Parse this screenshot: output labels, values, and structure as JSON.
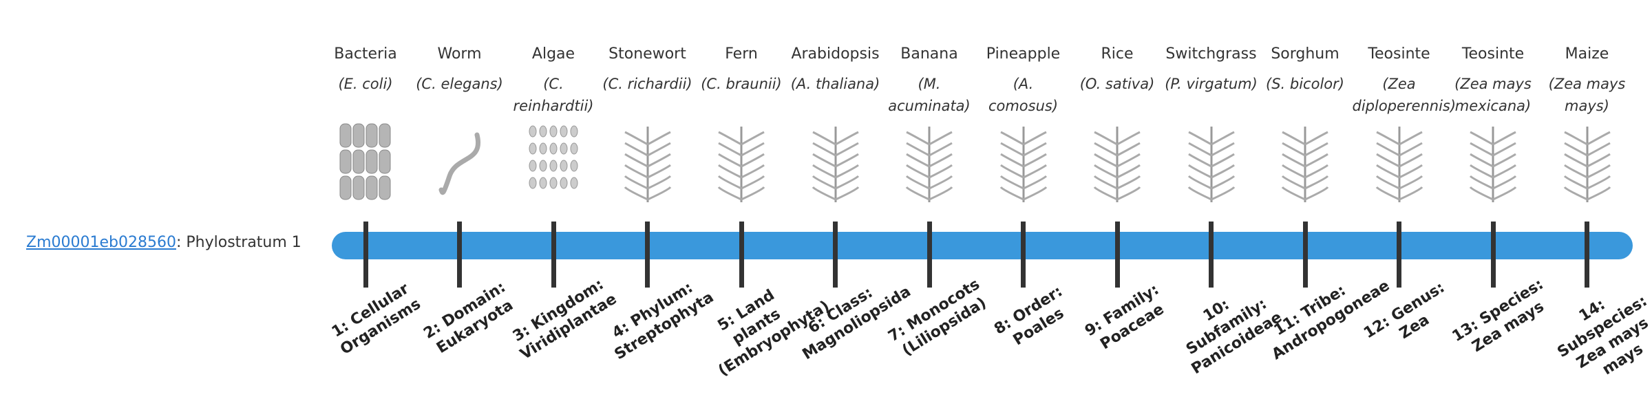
{
  "gene_link": "Zm00001eb028560",
  "gene_suffix": ": Phylostratum 1",
  "strata": [
    {
      "name": "Bacteria",
      "species": "(E. coli)",
      "label": "1: Cellular Organisms"
    },
    {
      "name": "Worm",
      "species": "(C. elegans)",
      "label": "2: Domain: Eukaryota"
    },
    {
      "name": "Algae",
      "species": "(C. reinhardtii)",
      "label": "3: Kingdom: Viridiplantae"
    },
    {
      "name": "Stonewort",
      "species": "(C. richardii)",
      "label": "4: Phylum: Streptophyta"
    },
    {
      "name": "Fern",
      "species": "(C. braunii)",
      "label": "5: Land plants (Embryophyta)"
    },
    {
      "name": "Arabidopsis",
      "species": "(A. thaliana)",
      "label": "6: Class: Magnoliopsida"
    },
    {
      "name": "Banana",
      "species": "(M. acuminata)",
      "label": "7: Monocots (Liliopsida)"
    },
    {
      "name": "Pineapple",
      "species": "(A. comosus)",
      "label": "8: Order: Poales"
    },
    {
      "name": "Rice",
      "species": "(O. sativa)",
      "label": "9: Family: Poaceae"
    },
    {
      "name": "Switchgrass",
      "species": "(P. virgatum)",
      "label": "10: Subfamily: Panicoideae"
    },
    {
      "name": "Sorghum",
      "species": "(S. bicolor)",
      "label": "11: Tribe: Andropogoneae"
    },
    {
      "name": "Teosinte",
      "species": "(Zea diploperennis)",
      "label": "12: Genus: Zea"
    },
    {
      "name": "Teosinte",
      "species": "(Zea mays mexicana)",
      "label": "13: Species: Zea mays"
    },
    {
      "name": "Maize",
      "species": "(Zea mays mays)",
      "label": "14: Subspecies: Zea mays mays"
    }
  ]
}
